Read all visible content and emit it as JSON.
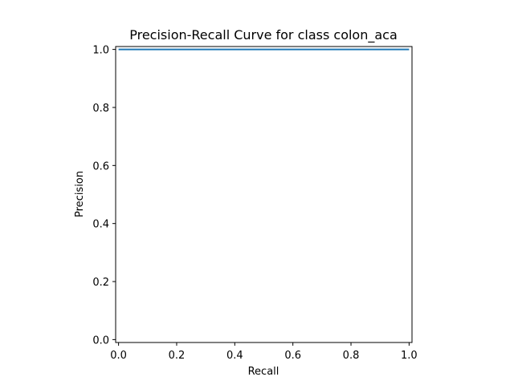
{
  "chart_data": {
    "type": "line",
    "title": "Precision-Recall Curve for class colon_aca",
    "xlabel": "Recall",
    "ylabel": "Precision",
    "xlim": [
      -0.01,
      1.01
    ],
    "ylim": [
      -0.01,
      1.01
    ],
    "xticks": [
      0.0,
      0.2,
      0.4,
      0.6,
      0.8,
      1.0
    ],
    "xtick_labels": [
      "0.0",
      "0.2",
      "0.4",
      "0.6",
      "0.8",
      "1.0"
    ],
    "yticks": [
      0.0,
      0.2,
      0.4,
      0.6,
      0.8,
      1.0
    ],
    "ytick_labels": [
      "0.0",
      "0.2",
      "0.4",
      "0.6",
      "0.8",
      "1.0"
    ],
    "grid": false,
    "series": [
      {
        "color": "#1f77b4",
        "x": [
          0.0,
          1.0
        ],
        "y": [
          1.0,
          1.0
        ]
      }
    ]
  }
}
